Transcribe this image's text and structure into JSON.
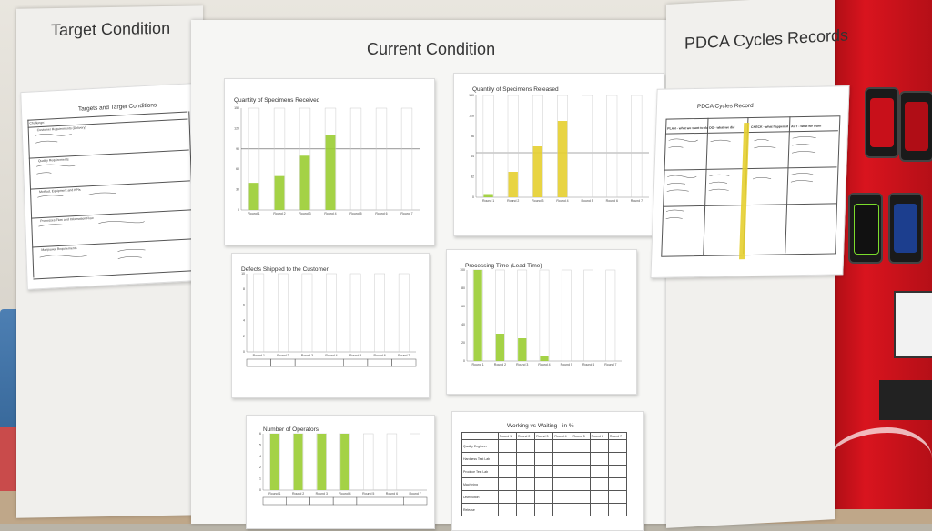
{
  "colors": {
    "bar_green": "#9acd32",
    "bar_yellow": "#e5cf2f",
    "board": "#f6f6f4",
    "machine_red": "#d9141e"
  },
  "headings": {
    "target": "Target Condition",
    "current": "Current Condition",
    "pdca": "PDCA Cycles Records"
  },
  "target_sheet": {
    "title": "Targets and Target Conditions",
    "rows": [
      "Challenge:",
      "Customer Requirements (Delivery)",
      "Quality Requirements",
      "Method, Equipment and KPIs",
      "Processes Flow and Information Flow",
      "Manpower Requirements"
    ]
  },
  "chart_data": [
    {
      "type": "bar",
      "title": "Quantity of Specimens Received",
      "categories": [
        "Round 1",
        "Round 2",
        "Round 3",
        "Round 4",
        "Round 5",
        "Round 6",
        "Round 7"
      ],
      "values": [
        40,
        50,
        80,
        110,
        0,
        0,
        0
      ],
      "ylim": [
        0,
        150
      ],
      "target_line": 90
    },
    {
      "type": "bar",
      "title": "Quantity of Specimens Released",
      "categories": [
        "Round 1",
        "Round 2",
        "Round 3",
        "Round 4",
        "Round 5",
        "Round 6",
        "Round 7"
      ],
      "values": [
        5,
        40,
        80,
        120,
        0,
        0,
        0
      ],
      "ylim": [
        0,
        160
      ],
      "target_line": 70
    },
    {
      "type": "bar",
      "title": "Defects Shipped to the Customer",
      "categories": [
        "Round 1",
        "Round 2",
        "Round 3",
        "Round 4",
        "Round 5",
        "Round 6",
        "Round 7"
      ],
      "values": [
        0,
        0,
        0,
        0,
        0,
        0,
        0
      ],
      "ylim": [
        0,
        10
      ]
    },
    {
      "type": "bar",
      "title": "Processing Time (Lead Time)",
      "categories": [
        "Round 1",
        "Round 2",
        "Round 3",
        "Round 4",
        "Round 5",
        "Round 6",
        "Round 7"
      ],
      "values": [
        100,
        30,
        25,
        5,
        0,
        0,
        0
      ],
      "ylim": [
        0,
        100
      ]
    },
    {
      "type": "bar",
      "title": "Number of Operators",
      "categories": [
        "Round 1",
        "Round 2",
        "Round 3",
        "Round 4",
        "Round 5",
        "Round 6",
        "Round 7"
      ],
      "values": [
        6,
        6,
        6,
        6,
        0,
        0,
        0
      ],
      "ylim": [
        0,
        6
      ]
    },
    {
      "type": "table",
      "title": "Working vs Waiting - in %",
      "columns": [
        "",
        "Round 1",
        "Round 2",
        "Round 3",
        "Round 4",
        "Round 5",
        "Round 6",
        "Round 7"
      ],
      "rows": [
        [
          "Quality Engineer",
          "",
          "",
          "",
          "",
          "",
          "",
          ""
        ],
        [
          "Hardness Test Lab",
          "",
          "",
          "",
          "",
          "",
          "",
          ""
        ],
        [
          "Produce Test Lab",
          "",
          "",
          "",
          "",
          "",
          "",
          ""
        ],
        [
          "Machining",
          "",
          "",
          "",
          "",
          "",
          "",
          ""
        ],
        [
          "Distribution",
          "",
          "",
          "",
          "",
          "",
          "",
          ""
        ],
        [
          "Release",
          "",
          "",
          "",
          "",
          "",
          "",
          ""
        ]
      ]
    }
  ],
  "pdca_sheet": {
    "title": "PDCA Cycles Record",
    "columns": [
      "PLAN - what we want to do",
      "DO - what we did",
      "CHECK - what happened",
      "ACT - what we learn"
    ]
  }
}
